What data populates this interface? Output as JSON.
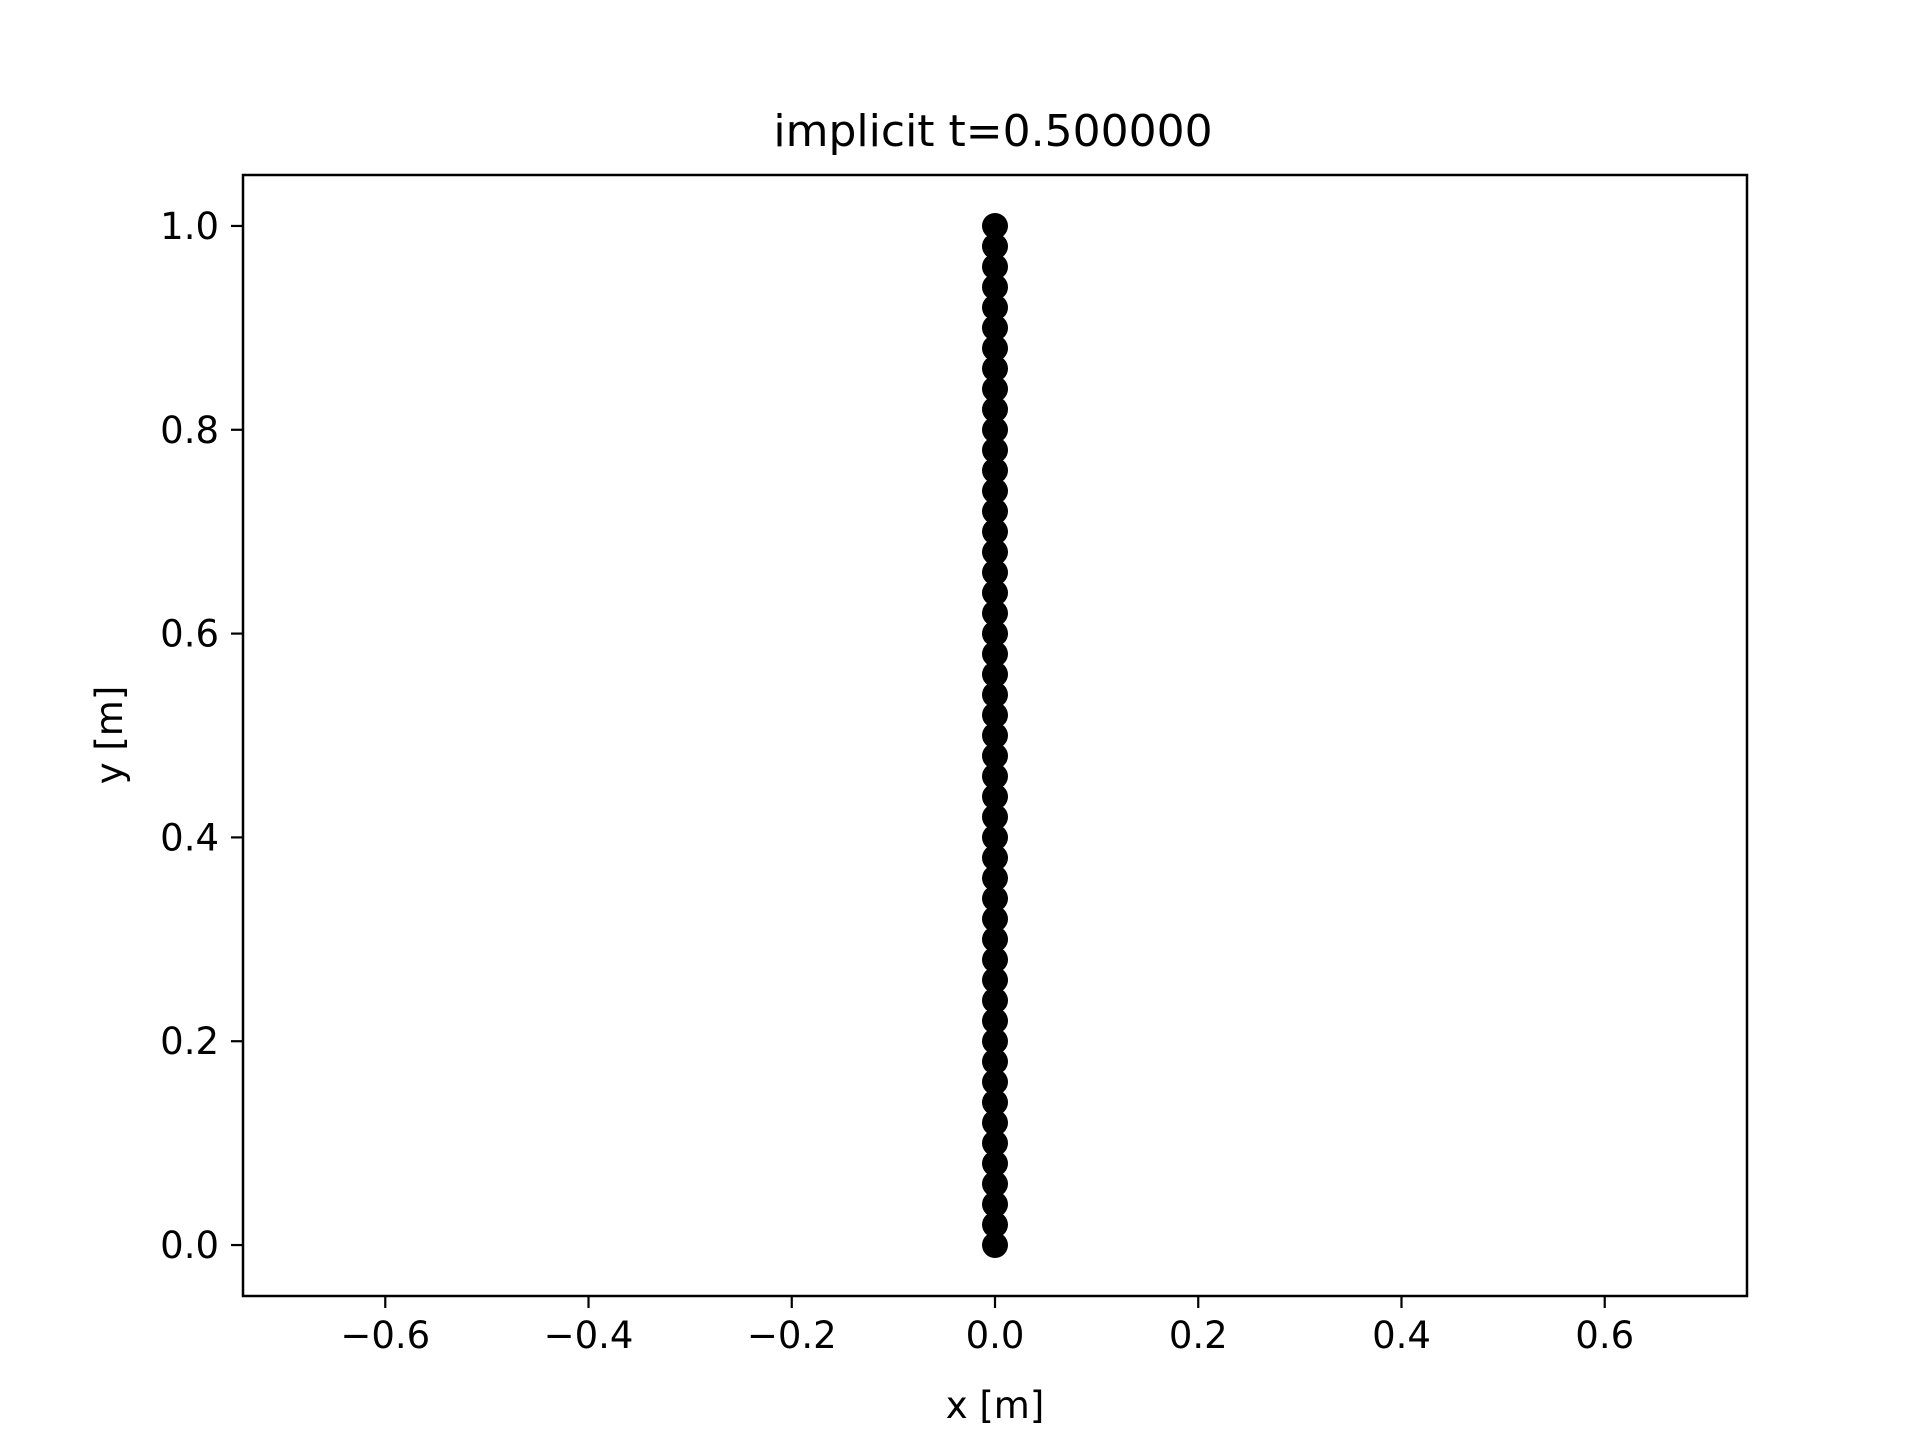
{
  "chart_data": {
    "type": "scatter",
    "title": "implicit t=0.500000",
    "xlabel": "x [m]",
    "ylabel": "y [m]",
    "xlim": [
      -0.74,
      0.74
    ],
    "ylim": [
      -0.05,
      1.05
    ],
    "xticks": [
      -0.6,
      -0.4,
      -0.2,
      0.0,
      0.2,
      0.4,
      0.6
    ],
    "xtick_labels": [
      "−0.6",
      "−0.4",
      "−0.2",
      "0.0",
      "0.2",
      "0.4",
      "0.6"
    ],
    "yticks": [
      0.0,
      0.2,
      0.4,
      0.6,
      0.8,
      1.0
    ],
    "ytick_labels": [
      "0.0",
      "0.2",
      "0.4",
      "0.6",
      "0.8",
      "1.0"
    ],
    "grid": false,
    "marker_color": "#000000",
    "series": [
      {
        "x": [
          0,
          0,
          0,
          0,
          0,
          0,
          0,
          0,
          0,
          0,
          0,
          0,
          0,
          0,
          0,
          0,
          0,
          0,
          0,
          0,
          0,
          0,
          0,
          0,
          0,
          0,
          0,
          0,
          0,
          0,
          0,
          0,
          0,
          0,
          0,
          0,
          0,
          0,
          0,
          0,
          0,
          0,
          0,
          0,
          0,
          0,
          0,
          0,
          0,
          0,
          0
        ],
        "y": [
          0.0,
          0.02,
          0.04,
          0.06,
          0.08,
          0.1,
          0.12,
          0.14,
          0.16,
          0.18,
          0.2,
          0.22,
          0.24,
          0.26,
          0.28,
          0.3,
          0.32,
          0.34,
          0.36,
          0.38,
          0.4,
          0.42,
          0.44,
          0.46,
          0.48,
          0.5,
          0.52,
          0.54,
          0.56,
          0.58,
          0.6,
          0.62,
          0.64,
          0.66,
          0.68,
          0.7,
          0.72,
          0.74,
          0.76,
          0.78,
          0.8,
          0.82,
          0.84,
          0.86,
          0.88,
          0.9,
          0.92,
          0.94,
          0.96,
          0.98,
          1.0
        ]
      }
    ]
  }
}
